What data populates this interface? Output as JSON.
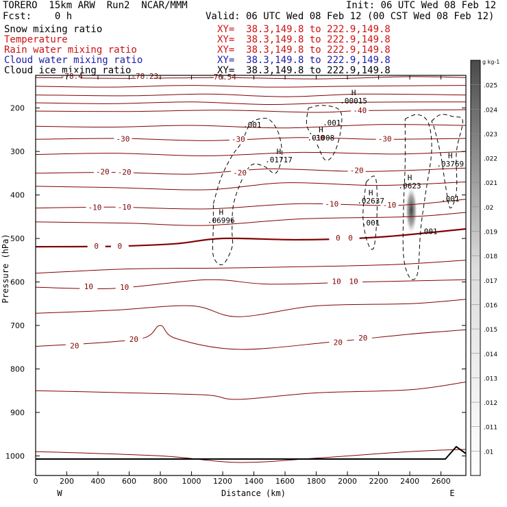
{
  "header": {
    "model": "TORERO  15km ARW  Run2  NCAR/MMM",
    "init": "Init: 06 UTC Wed 08 Feb 12",
    "fcst": "Fcst:    0 h",
    "valid": "Valid: 06 UTC Wed 08 Feb 12 (00 CST Wed 08 Feb 12)",
    "fields": [
      {
        "name": "Snow mixing ratio",
        "xy": "",
        "color": "#000000"
      },
      {
        "name": "Temperature",
        "xy": "XY=  38.3,149.8 to 222.9,149.8",
        "color": "#cc1111"
      },
      {
        "name": "Rain water mixing ratio",
        "xy": "XY=  38.3,149.8 to 222.9,149.8",
        "color": "#cc1111"
      },
      {
        "name": "Cloud water mixing ratio",
        "xy": "XY=  38.3,149.8 to 222.9,149.8",
        "color": "#1a1aa8"
      },
      {
        "name": "Cloud ice mixing ratio",
        "xy": "XY=  38.3,149.8 to 222.9,149.8",
        "color": "#000000"
      }
    ],
    "first_xy": "XY=  38.3,149.8 to 222.9,149.8"
  },
  "chart_data": {
    "type": "contour",
    "xlabel": "Distance (km)",
    "ylabel": "Pressure (hPa)",
    "xlim": [
      0,
      2760
    ],
    "ylim": [
      1045,
      125
    ],
    "xticks": [
      0,
      200,
      400,
      600,
      800,
      1000,
      1200,
      1400,
      1600,
      1800,
      2000,
      2200,
      2400,
      2600
    ],
    "yticks": [
      200,
      300,
      400,
      500,
      600,
      700,
      800,
      900,
      1000
    ],
    "x_endpoints": [
      "W",
      "E"
    ],
    "temperature_contours": [
      {
        "level": -70,
        "points": [
          [
            0,
            130
          ],
          [
            600,
            132
          ],
          [
            1200,
            130
          ],
          [
            1800,
            133
          ],
          [
            2400,
            128
          ],
          [
            2760,
            130
          ]
        ]
      },
      {
        "level": -60,
        "points": [
          [
            0,
            150
          ],
          [
            500,
            152
          ],
          [
            1000,
            148
          ],
          [
            1500,
            152
          ],
          [
            2000,
            150
          ],
          [
            2760,
            148
          ]
        ]
      },
      {
        "level": -50,
        "points": [
          [
            0,
            170
          ],
          [
            600,
            172
          ],
          [
            1100,
            168
          ],
          [
            1600,
            174
          ],
          [
            2100,
            168
          ],
          [
            2760,
            170
          ]
        ]
      },
      {
        "level": -45,
        "points": [
          [
            0,
            188
          ],
          [
            500,
            190
          ],
          [
            1000,
            186
          ],
          [
            1500,
            192
          ],
          [
            2000,
            187
          ],
          [
            2760,
            186
          ]
        ]
      },
      {
        "level": -40,
        "points": [
          [
            0,
            207
          ],
          [
            600,
            208
          ],
          [
            1200,
            205
          ],
          [
            1800,
            210
          ],
          [
            2100,
            206
          ],
          [
            2760,
            204
          ]
        ]
      },
      {
        "level": -35,
        "points": [
          [
            0,
            242
          ],
          [
            500,
            244
          ],
          [
            1000,
            240
          ],
          [
            1600,
            246
          ],
          [
            2200,
            238
          ],
          [
            2760,
            240
          ]
        ]
      },
      {
        "level": -30,
        "points": [
          [
            0,
            272
          ],
          [
            550,
            270
          ],
          [
            1100,
            275
          ],
          [
            1700,
            268
          ],
          [
            2200,
            272
          ],
          [
            2760,
            270
          ]
        ]
      },
      {
        "level": -25,
        "points": [
          [
            0,
            307
          ],
          [
            500,
            304
          ],
          [
            1100,
            310
          ],
          [
            1700,
            302
          ],
          [
            2300,
            306
          ],
          [
            2760,
            300
          ]
        ]
      },
      {
        "level": -20,
        "points": [
          [
            0,
            350
          ],
          [
            500,
            348
          ],
          [
            1000,
            352
          ],
          [
            1500,
            340
          ],
          [
            2100,
            346
          ],
          [
            2760,
            338
          ]
        ]
      },
      {
        "level": -15,
        "points": [
          [
            0,
            380
          ],
          [
            500,
            383
          ],
          [
            1100,
            388
          ],
          [
            1600,
            372
          ],
          [
            2200,
            378
          ],
          [
            2760,
            370
          ]
        ]
      },
      {
        "level": -10,
        "points": [
          [
            0,
            430
          ],
          [
            500,
            428
          ],
          [
            1100,
            432
          ],
          [
            1700,
            420
          ],
          [
            2300,
            424
          ],
          [
            2760,
            410
          ]
        ]
      },
      {
        "level": -5,
        "points": [
          [
            0,
            462
          ],
          [
            600,
            465
          ],
          [
            1100,
            470
          ],
          [
            1700,
            455
          ],
          [
            2400,
            450
          ],
          [
            2760,
            440
          ]
        ]
      },
      {
        "level": 0,
        "points": [
          [
            0,
            519
          ],
          [
            500,
            518
          ],
          [
            900,
            512
          ],
          [
            1200,
            500
          ],
          [
            1700,
            503
          ],
          [
            2200,
            497
          ],
          [
            2760,
            478
          ]
        ]
      },
      {
        "level": 5,
        "points": [
          [
            0,
            580
          ],
          [
            600,
            570
          ],
          [
            1200,
            568
          ],
          [
            1700,
            565
          ],
          [
            2300,
            560
          ],
          [
            2760,
            550
          ]
        ]
      },
      {
        "level": 10,
        "points": [
          [
            0,
            612
          ],
          [
            500,
            615
          ],
          [
            1100,
            595
          ],
          [
            1500,
            605
          ],
          [
            2100,
            600
          ],
          [
            2760,
            595
          ]
        ]
      },
      {
        "level": 15,
        "points": [
          [
            0,
            672
          ],
          [
            500,
            665
          ],
          [
            1000,
            655
          ],
          [
            1300,
            680
          ],
          [
            1800,
            655
          ],
          [
            2400,
            650
          ],
          [
            2760,
            640
          ]
        ]
      },
      {
        "level": 20,
        "points": [
          [
            0,
            748
          ],
          [
            400,
            740
          ],
          [
            700,
            728
          ],
          [
            800,
            700
          ],
          [
            900,
            730
          ],
          [
            1300,
            755
          ],
          [
            1900,
            738
          ],
          [
            2400,
            720
          ],
          [
            2760,
            710
          ]
        ]
      },
      {
        "level": 25,
        "points": [
          [
            0,
            850
          ],
          [
            600,
            855
          ],
          [
            1100,
            860
          ],
          [
            1300,
            870
          ],
          [
            1800,
            855
          ],
          [
            2400,
            848
          ],
          [
            2760,
            830
          ]
        ]
      },
      {
        "level": 30,
        "points": [
          [
            0,
            990
          ],
          [
            800,
            1000
          ],
          [
            1300,
            1015
          ],
          [
            1800,
            1005
          ],
          [
            2400,
            990
          ],
          [
            2760,
            985
          ]
        ]
      }
    ],
    "temperature_labels": [
      {
        "text": "-78.4",
        "x": 230,
        "p": 128
      },
      {
        "text": "-78.23",
        "x": 700,
        "p": 128
      },
      {
        "text": "-76.54",
        "x": 1200,
        "p": 130
      },
      {
        "text": "-40",
        "x": 2080,
        "p": 207
      },
      {
        "text": "-30",
        "x": 560,
        "p": 272
      },
      {
        "text": "-30",
        "x": 1300,
        "p": 273
      },
      {
        "text": "-30",
        "x": 1810,
        "p": 270
      },
      {
        "text": "-30",
        "x": 2240,
        "p": 272
      },
      {
        "text": "-20",
        "x": 430,
        "p": 348
      },
      {
        "text": "-20",
        "x": 570,
        "p": 349
      },
      {
        "text": "-20",
        "x": 1310,
        "p": 350
      },
      {
        "text": "-20",
        "x": 2060,
        "p": 345
      },
      {
        "text": "-10",
        "x": 380,
        "p": 430
      },
      {
        "text": "-10",
        "x": 570,
        "p": 429
      },
      {
        "text": "-10",
        "x": 1900,
        "p": 422
      },
      {
        "text": "-10",
        "x": 2270,
        "p": 424
      },
      {
        "text": "0",
        "x": 390,
        "p": 519
      },
      {
        "text": "0",
        "x": 540,
        "p": 519
      },
      {
        "text": "0",
        "x": 1940,
        "p": 500
      },
      {
        "text": "0",
        "x": 2020,
        "p": 500
      },
      {
        "text": "10",
        "x": 340,
        "p": 612
      },
      {
        "text": "10",
        "x": 570,
        "p": 613
      },
      {
        "text": "10",
        "x": 1930,
        "p": 600
      },
      {
        "text": "10",
        "x": 2040,
        "p": 600
      },
      {
        "text": "20",
        "x": 250,
        "p": 748
      },
      {
        "text": "20",
        "x": 630,
        "p": 733
      },
      {
        "text": "20",
        "x": 1940,
        "p": 740
      },
      {
        "text": "20",
        "x": 2100,
        "p": 730
      }
    ],
    "mixing_ratio_contours": [
      {
        "level": 0.001,
        "label": ".001",
        "points": [
          [
            1140,
            420
          ],
          [
            1190,
            360
          ],
          [
            1260,
            310
          ],
          [
            1320,
            280
          ],
          [
            1380,
            235
          ],
          [
            1460,
            224
          ],
          [
            1510,
            230
          ],
          [
            1560,
            260
          ],
          [
            1580,
            310
          ],
          [
            1540,
            350
          ],
          [
            1470,
            335
          ],
          [
            1390,
            330
          ],
          [
            1330,
            360
          ],
          [
            1270,
            420
          ],
          [
            1260,
            480
          ],
          [
            1260,
            520
          ],
          [
            1200,
            560
          ],
          [
            1140,
            540
          ],
          [
            1140,
            470
          ],
          [
            1140,
            420
          ]
        ]
      },
      {
        "level": 0.001,
        "label": ".001",
        "points": [
          [
            1750,
            200
          ],
          [
            1840,
            194
          ],
          [
            1950,
            205
          ],
          [
            1960,
            245
          ],
          [
            1920,
            300
          ],
          [
            1860,
            320
          ],
          [
            1800,
            280
          ],
          [
            1740,
            240
          ],
          [
            1750,
            200
          ]
        ]
      },
      {
        "level": 0.001,
        "label": ".001",
        "points": [
          [
            2120,
            370
          ],
          [
            2180,
            360
          ],
          [
            2190,
            440
          ],
          [
            2170,
            520
          ],
          [
            2130,
            510
          ],
          [
            2100,
            450
          ],
          [
            2120,
            370
          ]
        ]
      },
      {
        "level": 0.001,
        "label": ".001",
        "points": [
          [
            2370,
            225
          ],
          [
            2450,
            215
          ],
          [
            2520,
            235
          ],
          [
            2540,
            300
          ],
          [
            2500,
            400
          ],
          [
            2470,
            480
          ],
          [
            2450,
            580
          ],
          [
            2400,
            590
          ],
          [
            2360,
            540
          ],
          [
            2360,
            430
          ],
          [
            2370,
            330
          ],
          [
            2370,
            225
          ]
        ]
      },
      {
        "level": 0.001,
        "label": ".001",
        "points": [
          [
            2540,
            230
          ],
          [
            2600,
            215
          ],
          [
            2680,
            220
          ],
          [
            2740,
            230
          ],
          [
            2700,
            300
          ],
          [
            2700,
            390
          ],
          [
            2660,
            430
          ],
          [
            2630,
            380
          ],
          [
            2600,
            310
          ],
          [
            2560,
            250
          ],
          [
            2540,
            230
          ]
        ]
      }
    ],
    "maxima": [
      {
        "text": ".00015",
        "x": 2040,
        "p": 185
      },
      {
        "text": ".01008",
        "x": 1830,
        "p": 270
      },
      {
        "text": ".01717",
        "x": 1560,
        "p": 320
      },
      {
        "text": ".06996",
        "x": 1190,
        "p": 460
      },
      {
        "text": ".02637",
        "x": 2150,
        "p": 415
      },
      {
        "text": ".0623",
        "x": 2400,
        "p": 380
      },
      {
        "text": ".03769",
        "x": 2660,
        "p": 330
      }
    ],
    "contour_labels": [
      {
        "text": ".001",
        "x": 1390,
        "p": 240
      },
      {
        "text": ".001",
        "x": 1900,
        "p": 235
      },
      {
        "text": ".001",
        "x": 2150,
        "p": 465
      },
      {
        "text": ".001",
        "x": 2520,
        "p": 485
      },
      {
        "text": ".001",
        "x": 2660,
        "p": 410
      }
    ],
    "shaded_max": {
      "x": 2410,
      "p": 435
    },
    "colorbar": {
      "unit": "g kg-1",
      "levels": [
        ".01",
        ".011",
        ".012",
        ".013",
        ".014",
        ".015",
        ".016",
        ".017",
        ".018",
        ".019",
        ".02",
        ".021",
        ".022",
        ".023",
        ".024",
        ".025"
      ]
    }
  }
}
